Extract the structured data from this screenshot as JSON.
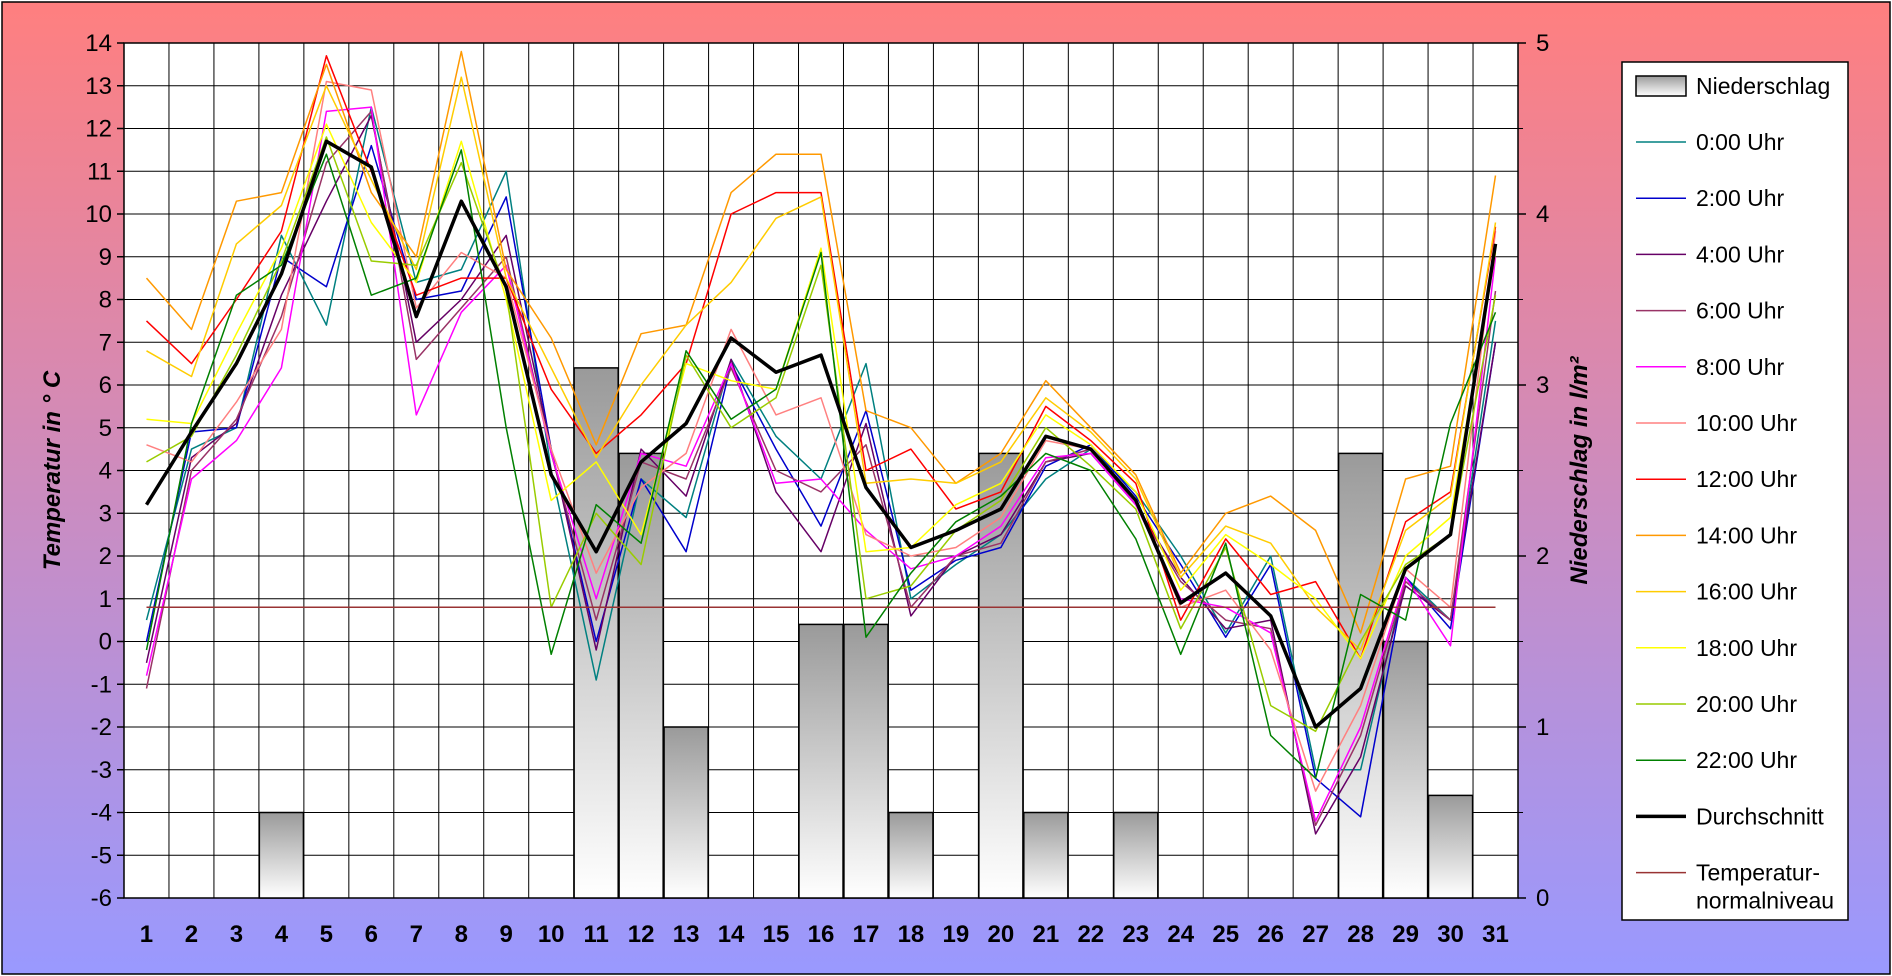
{
  "chart_data": {
    "type": "line",
    "secondary_type": "bar",
    "x": [
      1,
      2,
      3,
      4,
      5,
      6,
      7,
      8,
      9,
      10,
      11,
      12,
      13,
      14,
      15,
      16,
      17,
      18,
      19,
      20,
      21,
      22,
      23,
      24,
      25,
      26,
      27,
      28,
      29,
      30,
      31
    ],
    "y_left": {
      "label": "Temperatur in ° C",
      "range": [
        -6,
        14
      ],
      "step": 1
    },
    "y_right": {
      "label": "Niederschlag in l/m²",
      "range": [
        0,
        5
      ],
      "step": 1
    },
    "grid": true,
    "legend_position": "right",
    "colors": {
      "background_top": "#ff7f7f",
      "background_bottom": "#9999ff",
      "plot_area": "#ffffff",
      "grid": "#000000",
      "bar_fill_top": "#9a9a9a",
      "bar_fill_bottom": "#ffffff"
    },
    "bars": {
      "name": "Niederschlag",
      "axis": "right",
      "values": [
        0,
        0,
        0,
        0.5,
        0,
        0,
        0,
        0,
        0,
        0,
        3.1,
        2.6,
        1.0,
        0,
        0,
        1.6,
        1.6,
        0.5,
        0,
        2.6,
        0.5,
        0,
        0.5,
        0,
        0,
        0,
        0,
        2.6,
        1.5,
        0.6,
        0
      ]
    },
    "series": [
      {
        "name": "0:00 Uhr",
        "color": "#008080",
        "width": 1.5,
        "values": [
          0.5,
          4.5,
          5.0,
          9.5,
          7.4,
          12.5,
          8.4,
          8.7,
          11.0,
          4.0,
          -0.9,
          3.8,
          2.9,
          6.6,
          4.8,
          3.8,
          6.5,
          1.0,
          1.8,
          2.5,
          3.8,
          4.5,
          3.5,
          2.0,
          0.2,
          2.0,
          -3.0,
          -3.0,
          1.5,
          0.5,
          7.5
        ]
      },
      {
        "name": "2:00 Uhr",
        "color": "#0000cc",
        "width": 1.5,
        "values": [
          0.0,
          4.9,
          5.0,
          9.0,
          8.3,
          11.6,
          8.0,
          8.2,
          10.4,
          4.5,
          0.0,
          3.8,
          2.1,
          6.5,
          4.5,
          2.7,
          5.4,
          1.2,
          1.9,
          2.2,
          4.1,
          4.6,
          3.4,
          1.8,
          0.1,
          1.8,
          -3.2,
          -4.1,
          1.5,
          0.3,
          7.0
        ]
      },
      {
        "name": "4:00 Uhr",
        "color": "#660066",
        "width": 1.5,
        "values": [
          -0.5,
          4.3,
          5.1,
          8.1,
          10.3,
          12.3,
          7.0,
          8.0,
          9.5,
          4.5,
          -0.2,
          4.5,
          3.4,
          6.6,
          3.5,
          2.1,
          5.1,
          0.6,
          2.0,
          2.5,
          4.2,
          4.4,
          3.2,
          1.5,
          0.3,
          0.5,
          -4.5,
          -2.7,
          1.3,
          0.5,
          7.0
        ]
      },
      {
        "name": "6:00 Uhr",
        "color": "#993366",
        "width": 1.5,
        "values": [
          -1.1,
          4.0,
          5.2,
          7.6,
          11.2,
          12.4,
          6.6,
          7.8,
          9.0,
          4.4,
          0.5,
          4.2,
          3.8,
          6.4,
          4.0,
          3.5,
          4.6,
          0.8,
          2.0,
          2.3,
          4.2,
          4.5,
          3.2,
          1.4,
          0.5,
          0.3,
          -4.3,
          -2.2,
          1.4,
          0.5,
          8.2
        ]
      },
      {
        "name": "8:00 Uhr",
        "color": "#ff00ff",
        "width": 1.5,
        "values": [
          -0.8,
          3.8,
          4.7,
          6.4,
          12.4,
          12.5,
          5.3,
          7.7,
          8.8,
          4.4,
          1.0,
          4.4,
          4.1,
          6.5,
          3.7,
          3.8,
          2.6,
          1.7,
          2.0,
          2.7,
          4.3,
          4.4,
          3.2,
          1.0,
          0.8,
          0.2,
          -4.2,
          -2.0,
          1.5,
          -0.1,
          9.0
        ]
      },
      {
        "name": "10:00 Uhr",
        "color": "#ff8080",
        "width": 1.5,
        "values": [
          4.6,
          4.2,
          5.6,
          7.3,
          13.1,
          12.9,
          7.8,
          9.1,
          8.5,
          4.5,
          1.6,
          3.6,
          4.4,
          7.3,
          5.3,
          5.7,
          2.5,
          2.0,
          2.2,
          2.9,
          4.7,
          4.5,
          3.3,
          0.8,
          1.2,
          -0.2,
          -3.5,
          -1.5,
          1.7,
          0.8,
          9.6
        ]
      },
      {
        "name": "12:00 Uhr",
        "color": "#ff0000",
        "width": 1.5,
        "values": [
          7.5,
          6.5,
          8.0,
          9.6,
          13.7,
          11.0,
          8.1,
          8.5,
          8.5,
          5.9,
          4.4,
          5.3,
          6.5,
          10.0,
          10.5,
          10.5,
          4.0,
          4.5,
          3.1,
          3.5,
          5.5,
          4.7,
          3.7,
          0.5,
          2.4,
          1.1,
          1.4,
          -0.4,
          2.8,
          3.5,
          9.7
        ]
      },
      {
        "name": "14:00 Uhr",
        "color": "#ff9900",
        "width": 1.5,
        "values": [
          8.5,
          7.3,
          10.3,
          10.5,
          13.5,
          10.5,
          9.0,
          13.8,
          8.7,
          7.1,
          4.6,
          7.2,
          7.4,
          10.5,
          11.4,
          11.4,
          5.4,
          5.0,
          3.7,
          4.4,
          6.1,
          5.0,
          3.9,
          1.6,
          3.0,
          3.4,
          2.6,
          0.2,
          3.8,
          4.1,
          10.9
        ]
      },
      {
        "name": "16:00 Uhr",
        "color": "#ffcc00",
        "width": 1.5,
        "values": [
          6.8,
          6.2,
          9.3,
          10.2,
          13.0,
          10.8,
          8.7,
          13.2,
          8.5,
          6.4,
          4.3,
          6.0,
          7.4,
          8.4,
          9.9,
          10.4,
          3.7,
          3.8,
          3.7,
          4.2,
          5.7,
          4.9,
          3.8,
          1.5,
          2.7,
          2.3,
          0.8,
          -0.2,
          2.6,
          3.4,
          9.8
        ]
      },
      {
        "name": "18:00 Uhr",
        "color": "#ffff00",
        "width": 1.5,
        "values": [
          5.2,
          5.1,
          7.2,
          9.2,
          12.1,
          9.8,
          8.4,
          11.7,
          8.0,
          3.3,
          4.2,
          2.5,
          6.5,
          6.1,
          5.9,
          9.2,
          2.1,
          2.2,
          3.2,
          3.7,
          5.3,
          4.6,
          3.5,
          1.2,
          2.5,
          1.8,
          1.0,
          -0.4,
          2.0,
          2.9,
          9.1
        ]
      },
      {
        "name": "20:00 Uhr",
        "color": "#99cc00",
        "width": 1.5,
        "values": [
          4.2,
          4.8,
          6.7,
          8.9,
          11.8,
          8.9,
          8.8,
          11.2,
          8.2,
          0.8,
          3.0,
          1.8,
          6.7,
          5.0,
          5.7,
          8.8,
          1.0,
          1.3,
          2.6,
          3.3,
          5.0,
          4.1,
          3.1,
          0.3,
          2.2,
          -1.5,
          -2.1,
          0.0,
          1.8,
          2.5,
          8.1
        ]
      },
      {
        "name": "22:00 Uhr",
        "color": "#008000",
        "width": 1.5,
        "values": [
          -0.2,
          5.1,
          8.1,
          8.8,
          11.4,
          8.1,
          8.5,
          11.5,
          5.0,
          -0.3,
          3.2,
          2.3,
          6.8,
          5.2,
          5.9,
          9.1,
          0.1,
          1.6,
          2.8,
          3.4,
          4.4,
          4.0,
          2.4,
          -0.3,
          2.3,
          -2.2,
          -3.2,
          1.1,
          0.5,
          5.1,
          7.7
        ]
      },
      {
        "name": "Durchschnitt",
        "color": "#000000",
        "width": 3.5,
        "values": [
          3.2,
          4.9,
          6.5,
          8.6,
          11.7,
          11.1,
          7.6,
          10.3,
          8.3,
          3.9,
          2.1,
          4.2,
          5.1,
          7.1,
          6.3,
          6.7,
          3.6,
          2.2,
          2.6,
          3.1,
          4.8,
          4.5,
          3.3,
          0.9,
          1.6,
          0.6,
          -2.0,
          -1.1,
          1.7,
          2.5,
          9.3
        ]
      },
      {
        "name": "Temperatur-\nnormalniveau",
        "color": "#993333",
        "width": 1.5,
        "values": [
          0.8,
          0.8,
          0.8,
          0.8,
          0.8,
          0.8,
          0.8,
          0.8,
          0.8,
          0.8,
          0.8,
          0.8,
          0.8,
          0.8,
          0.8,
          0.8,
          0.8,
          0.8,
          0.8,
          0.8,
          0.8,
          0.8,
          0.8,
          0.8,
          0.8,
          0.8,
          0.8,
          0.8,
          0.8,
          0.8,
          0.8
        ]
      }
    ]
  }
}
